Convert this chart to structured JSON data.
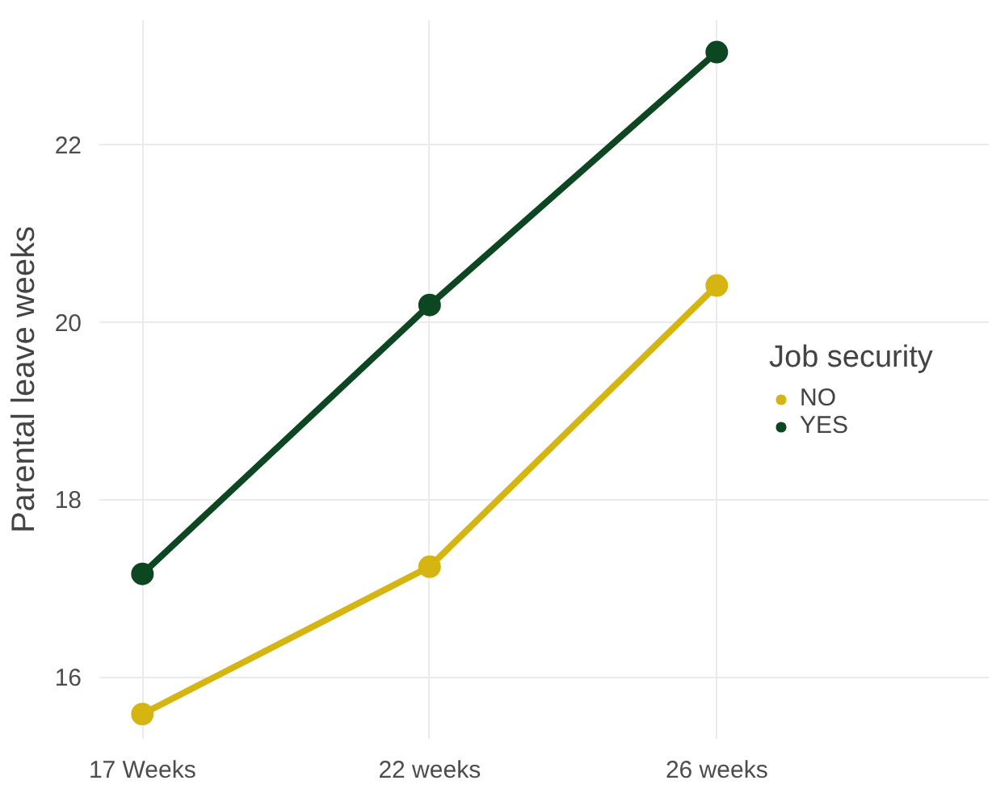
{
  "chart_data": {
    "type": "line",
    "ylabel": "Parental leave weeks",
    "legend_title": "Job security",
    "categories": [
      "17 Weeks",
      "22 weeks",
      "26 weeks"
    ],
    "series": [
      {
        "name": "NO",
        "color": "#d4b512",
        "values": [
          15.58,
          17.24,
          20.41
        ]
      },
      {
        "name": "YES",
        "color": "#0d4722",
        "values": [
          17.16,
          20.19,
          23.04
        ]
      }
    ],
    "ylim": [
      15.3,
      23.4
    ],
    "yticks": [
      16,
      18,
      20,
      22
    ],
    "grid": true,
    "legend": "right",
    "marker": "circle",
    "line_style": "solid"
  }
}
